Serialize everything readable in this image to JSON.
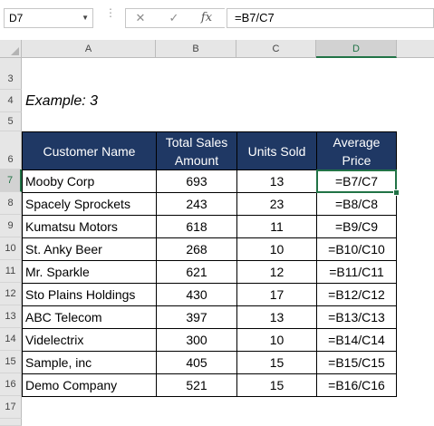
{
  "name_box": "D7",
  "formula": "=B7/C7",
  "toolbar": {
    "cancel": "✕",
    "enter": "✓",
    "fx": "fx",
    "dots": "⋮"
  },
  "columns": [
    "A",
    "B",
    "C",
    "D"
  ],
  "rows_before": [
    "3",
    "4",
    "5",
    "6"
  ],
  "title_row": "4",
  "title": "Example: 3",
  "header_row": "6",
  "headers": {
    "customer": "Customer Name",
    "sales": "Total Sales Amount",
    "units": "Units Sold",
    "avg": "Average Price"
  },
  "data": [
    {
      "row": "7",
      "customer": "Mooby Corp",
      "sales": "693",
      "units": "13",
      "formula": "=B7/C7"
    },
    {
      "row": "8",
      "customer": "Spacely Sprockets",
      "sales": "243",
      "units": "23",
      "formula": "=B8/C8"
    },
    {
      "row": "9",
      "customer": "Kumatsu Motors",
      "sales": "618",
      "units": "11",
      "formula": "=B9/C9"
    },
    {
      "row": "10",
      "customer": "St. Anky Beer",
      "sales": "268",
      "units": "10",
      "formula": "=B10/C10"
    },
    {
      "row": "11",
      "customer": "Mr. Sparkle",
      "sales": "621",
      "units": "12",
      "formula": "=B11/C11"
    },
    {
      "row": "12",
      "customer": "Sto Plains Holdings",
      "sales": "430",
      "units": "17",
      "formula": "=B12/C12"
    },
    {
      "row": "13",
      "customer": "ABC Telecom",
      "sales": "397",
      "units": "13",
      "formula": "=B13/C13"
    },
    {
      "row": "14",
      "customer": "Videlectrix",
      "sales": "300",
      "units": "10",
      "formula": "=B14/C14"
    },
    {
      "row": "15",
      "customer": "Sample, inc",
      "sales": "405",
      "units": "15",
      "formula": "=B15/C15"
    },
    {
      "row": "16",
      "customer": "Demo Company",
      "sales": "521",
      "units": "15",
      "formula": "=B16/C16"
    }
  ],
  "rows_after": [
    "17"
  ],
  "active_cell": "D7",
  "colors": {
    "header_fill": "#1f3864",
    "header_text": "#ffffff",
    "selection": "#217346"
  }
}
